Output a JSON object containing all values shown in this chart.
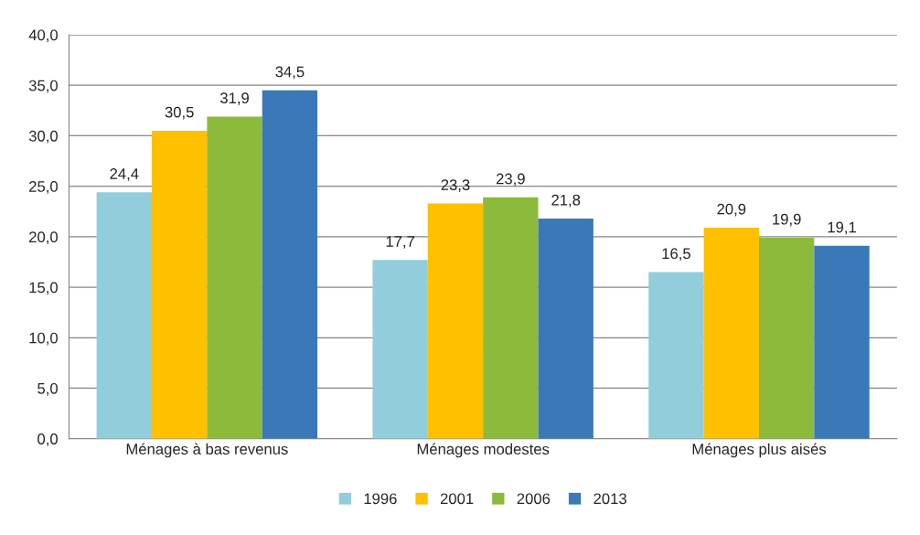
{
  "chart_data": {
    "type": "bar",
    "categories": [
      "Ménages à bas revenus",
      "Ménages modestes",
      "Ménages plus aisés"
    ],
    "series": [
      {
        "name": "1996",
        "color": "#92cddc",
        "values": [
          24.4,
          17.7,
          16.5
        ],
        "value_labels": [
          "24,4",
          "17,7",
          "16,5"
        ]
      },
      {
        "name": "2001",
        "color": "#ffc000",
        "values": [
          30.5,
          23.3,
          20.9
        ],
        "value_labels": [
          "30,5",
          "23,3",
          "20,9"
        ]
      },
      {
        "name": "2006",
        "color": "#8cbb3c",
        "values": [
          31.9,
          23.9,
          19.9
        ],
        "value_labels": [
          "31,9",
          "23,9",
          "19,9"
        ]
      },
      {
        "name": "2013",
        "color": "#3a78b8",
        "values": [
          34.5,
          21.8,
          19.1
        ],
        "value_labels": [
          "34,5",
          "21,8",
          "19,1"
        ]
      }
    ],
    "ylim": [
      0,
      40
    ],
    "yticks": [
      {
        "value": 0,
        "label": "0,0"
      },
      {
        "value": 5,
        "label": "5,0"
      },
      {
        "value": 10,
        "label": "10,0"
      },
      {
        "value": 15,
        "label": "15,0"
      },
      {
        "value": 20,
        "label": "20,0"
      },
      {
        "value": 25,
        "label": "25,0"
      },
      {
        "value": 30,
        "label": "30,0"
      },
      {
        "value": 35,
        "label": "35,0"
      },
      {
        "value": 40,
        "label": "40,0"
      }
    ],
    "grid": "y",
    "legend": "bottom"
  }
}
